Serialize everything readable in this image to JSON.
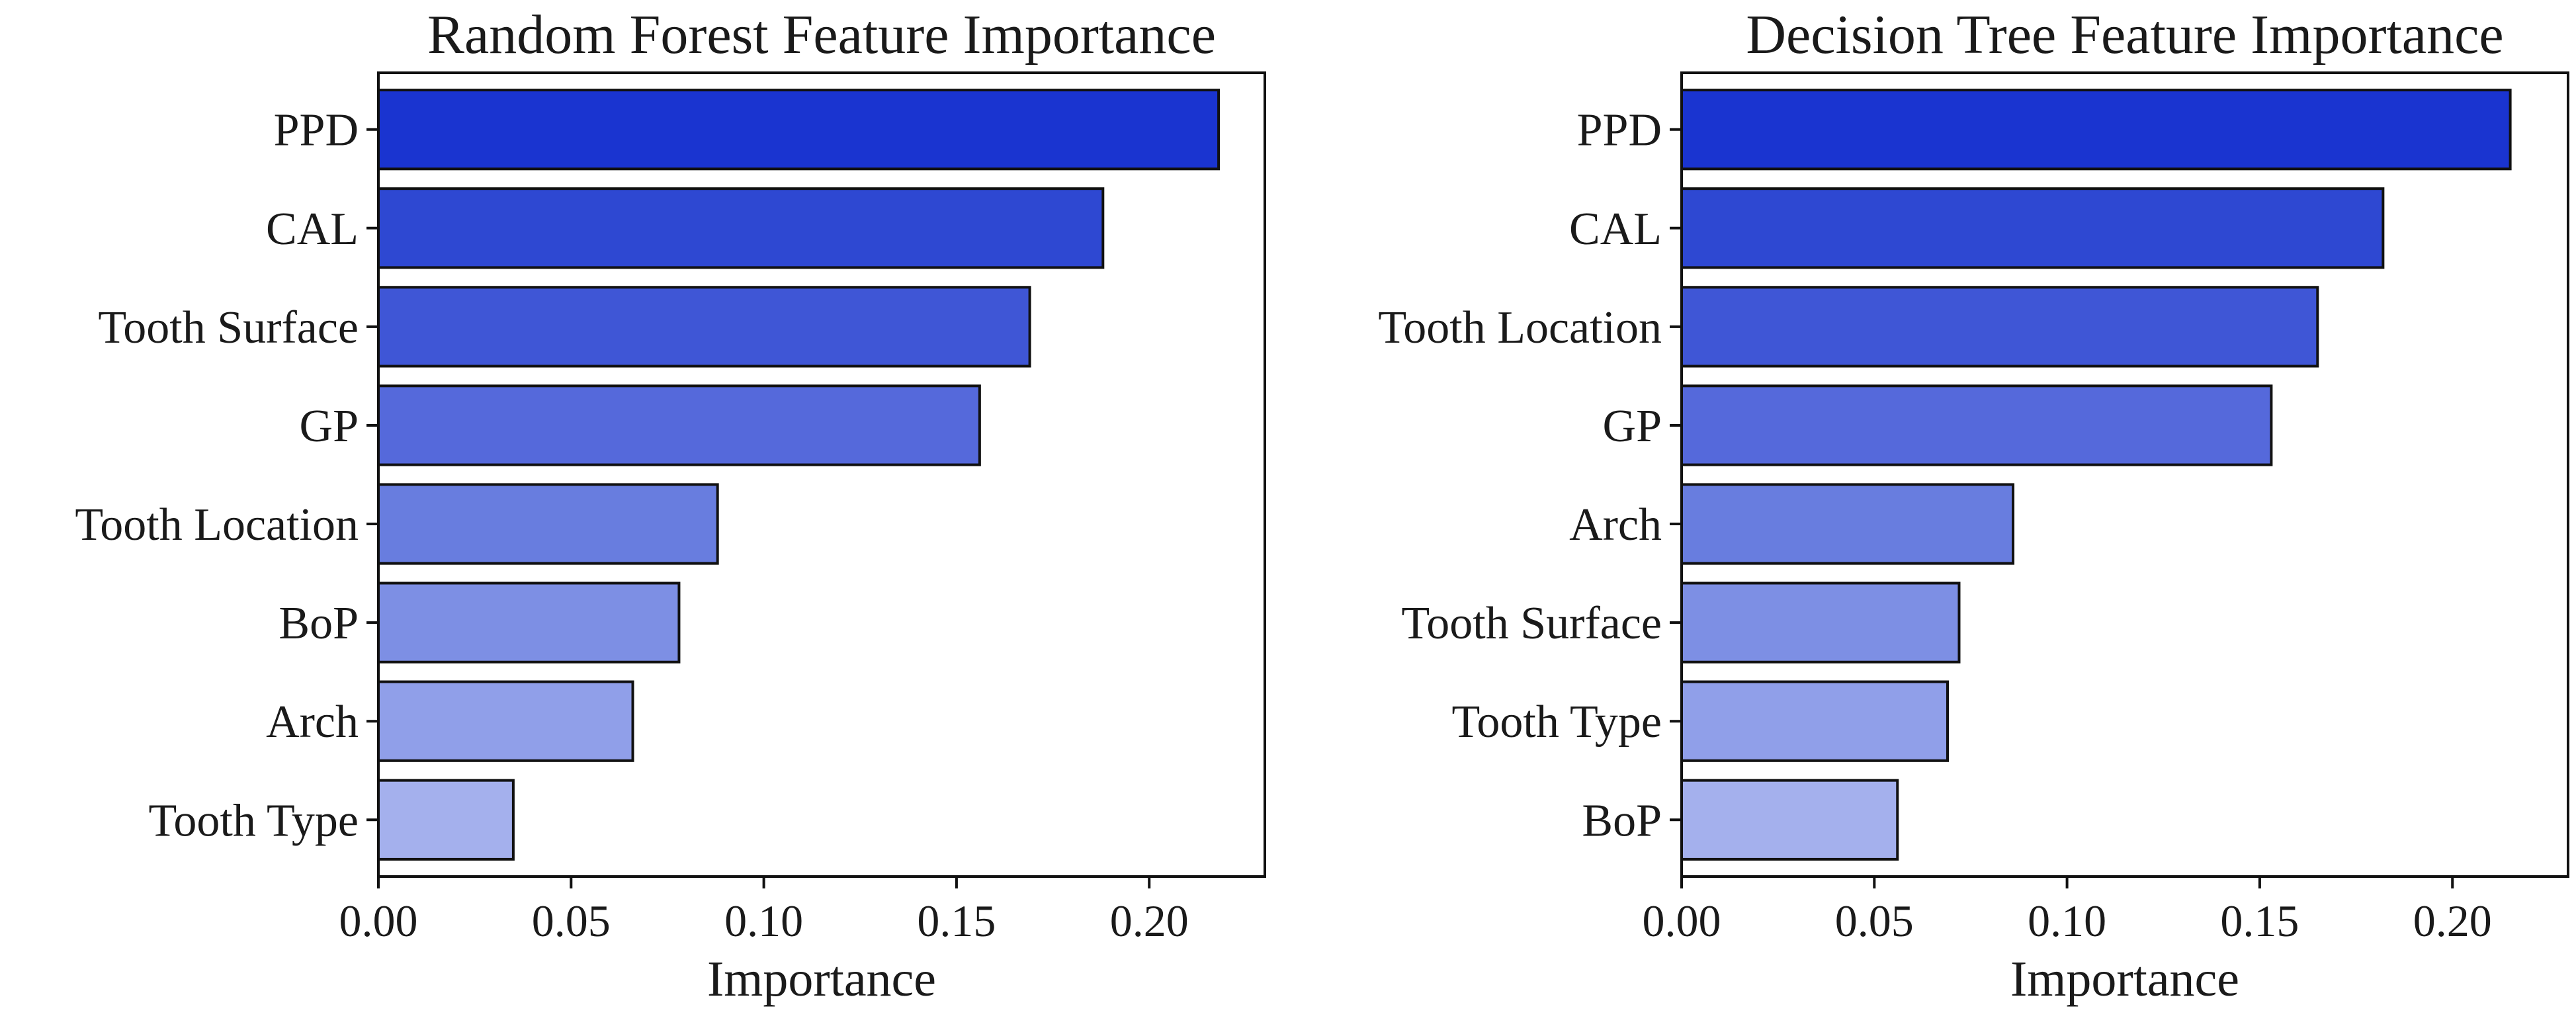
{
  "chart_data": [
    {
      "type": "bar",
      "orientation": "horizontal",
      "title": "Random Forest Feature Importance",
      "xlabel": "Importance",
      "ylabel": "",
      "xlim": [
        0,
        0.23
      ],
      "xticks": [
        "0.00",
        "0.05",
        "0.10",
        "0.15",
        "0.20"
      ],
      "categories": [
        "PPD",
        "CAL",
        "Tooth Surface",
        "GP",
        "Tooth Location",
        "BoP",
        "Arch",
        "Tooth Type"
      ],
      "values": [
        0.218,
        0.188,
        0.169,
        0.156,
        0.088,
        0.078,
        0.066,
        0.035
      ],
      "colors": [
        "#1a34d0",
        "#2e48d2",
        "#3f56d6",
        "#5569db",
        "#687ddf",
        "#7d8fe4",
        "#909fe9",
        "#a4b0ed"
      ],
      "grid": false,
      "legend": "none"
    },
    {
      "type": "bar",
      "orientation": "horizontal",
      "title": "Decision Tree Feature Importance",
      "xlabel": "Importance",
      "ylabel": "",
      "xlim": [
        0,
        0.23
      ],
      "xticks": [
        "0.00",
        "0.05",
        "0.10",
        "0.15",
        "0.20"
      ],
      "categories": [
        "PPD",
        "CAL",
        "Tooth Location",
        "GP",
        "Arch",
        "Tooth Surface",
        "Tooth Type",
        "BoP"
      ],
      "values": [
        0.215,
        0.182,
        0.165,
        0.153,
        0.086,
        0.072,
        0.069,
        0.056
      ],
      "colors": [
        "#1a34d0",
        "#2e48d2",
        "#3f56d6",
        "#5569db",
        "#687ddf",
        "#7d8fe4",
        "#909fe9",
        "#a4b0ed"
      ],
      "grid": false,
      "legend": "none"
    }
  ]
}
